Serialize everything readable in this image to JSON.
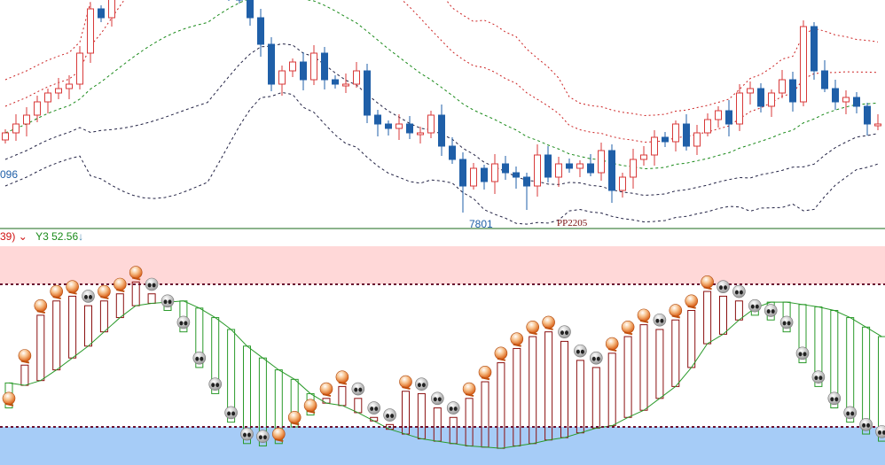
{
  "labels": {
    "left_price_fragment": "096",
    "low_price": "7801",
    "symbol_marker": "PP2205",
    "indicator_prefix": "39)",
    "indicator_arrow": "⌄",
    "indicator_name": "Y3",
    "indicator_value": "52.56",
    "indicator_trend": "↓"
  },
  "colors": {
    "up_candle": "#d83a3a",
    "down_candle": "#1f5fa8",
    "band_middle": "#1a8a1a",
    "band_upper": "#cc2222",
    "band_lower": "#222244",
    "overbought_zone": "#ffd8d8",
    "oversold_zone": "#a6ccf7",
    "hist_rising": "#8b1010",
    "hist_falling": "#2a9a2a",
    "level_line": "#6a1030"
  },
  "chart_data": [
    {
      "type": "candlestick",
      "title": "",
      "indicators": [
        "bollinger-bands"
      ],
      "annotations": [
        "7801",
        "PP2205"
      ],
      "closes": [
        7891,
        7901,
        7911,
        7926,
        7936,
        7941,
        7946,
        7981,
        8031,
        8021,
        8051,
        8070,
        8085,
        8095,
        8100,
        8100,
        8095,
        8085,
        8075,
        8070,
        8060,
        8050,
        8041,
        8021,
        7991,
        7946,
        7961,
        7971,
        7951,
        7981,
        7951,
        7946,
        7946,
        7961,
        7911,
        7901,
        7896,
        7901,
        7891,
        7891,
        7911,
        7876,
        7861,
        7831,
        7851,
        7836,
        7856,
        7846,
        7841,
        7831,
        7866,
        7841,
        7856,
        7851,
        7856,
        7846,
        7871,
        7826,
        7841,
        7861,
        7866,
        7886,
        7881,
        7901,
        7876,
        7891,
        7906,
        7916,
        7901,
        7936,
        7941,
        7921,
        7936,
        7951,
        7926,
        8011,
        7961,
        7941,
        7926,
        7931,
        7921,
        7901,
        7901
      ]
    },
    {
      "type": "oscillator",
      "name": "Y3",
      "last_value": 52.56,
      "levels": [
        80,
        20
      ],
      "fast": [
        32,
        50,
        71,
        77,
        79,
        75,
        77,
        80,
        85,
        80,
        73,
        64,
        49,
        38,
        26,
        17,
        16,
        17,
        24,
        29,
        36,
        41,
        36,
        28,
        25,
        39,
        38,
        32,
        28,
        36,
        43,
        51,
        57,
        62,
        64,
        60,
        52,
        49,
        55,
        62,
        67,
        65,
        69,
        73,
        81,
        79,
        77,
        71,
        69,
        64,
        51,
        41,
        32,
        26,
        21,
        18
      ],
      "slow": [
        38.5,
        37.5,
        39.5,
        44,
        49,
        54,
        60,
        66,
        71,
        72,
        72.5,
        73,
        70,
        66,
        61,
        54,
        49,
        44,
        40,
        34,
        30,
        29,
        26,
        22.5,
        19,
        17,
        15,
        14,
        13,
        12,
        11.5,
        11,
        12,
        13,
        14.5,
        15.5,
        17.5,
        19.5,
        20.5,
        24,
        27,
        32,
        37,
        45,
        55,
        59,
        65,
        70,
        72.5,
        72.5,
        71.5,
        70.5,
        69,
        66,
        62,
        58
      ]
    }
  ]
}
